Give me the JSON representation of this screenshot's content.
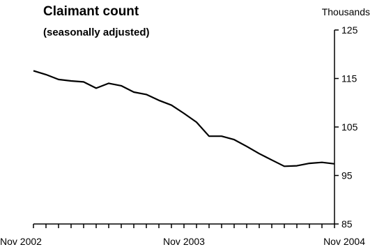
{
  "chart_data": {
    "type": "line",
    "title": "Claimant count",
    "subtitle": "(seasonally adjusted)",
    "ylabel": "Thousands",
    "ylim": [
      85,
      125
    ],
    "yticks": [
      85,
      95,
      105,
      115,
      125
    ],
    "xtick_labels": [
      "Nov 2002",
      "Nov 2003",
      "Nov 2004"
    ],
    "x": [
      "Nov 2002",
      "Dec 2002",
      "Jan 2003",
      "Feb 2003",
      "Mar 2003",
      "Apr 2003",
      "May 2003",
      "Jun 2003",
      "Jul 2003",
      "Aug 2003",
      "Sep 2003",
      "Oct 2003",
      "Nov 2003",
      "Dec 2003",
      "Jan 2004",
      "Feb 2004",
      "Mar 2004",
      "Apr 2004",
      "May 2004",
      "Jun 2004",
      "Jul 2004",
      "Aug 2004",
      "Sep 2004",
      "Oct 2004",
      "Nov 2004"
    ],
    "series": [
      {
        "values": [
          116.6,
          115.8,
          114.8,
          114.5,
          114.3,
          113.0,
          114.0,
          113.5,
          112.2,
          111.7,
          110.5,
          109.5,
          107.8,
          106.0,
          103.1,
          103.1,
          102.4,
          101.0,
          99.5,
          98.2,
          96.9,
          97.0,
          97.5,
          97.7,
          97.4
        ],
        "color": "#000000"
      }
    ],
    "grid": false,
    "legend": "none"
  }
}
